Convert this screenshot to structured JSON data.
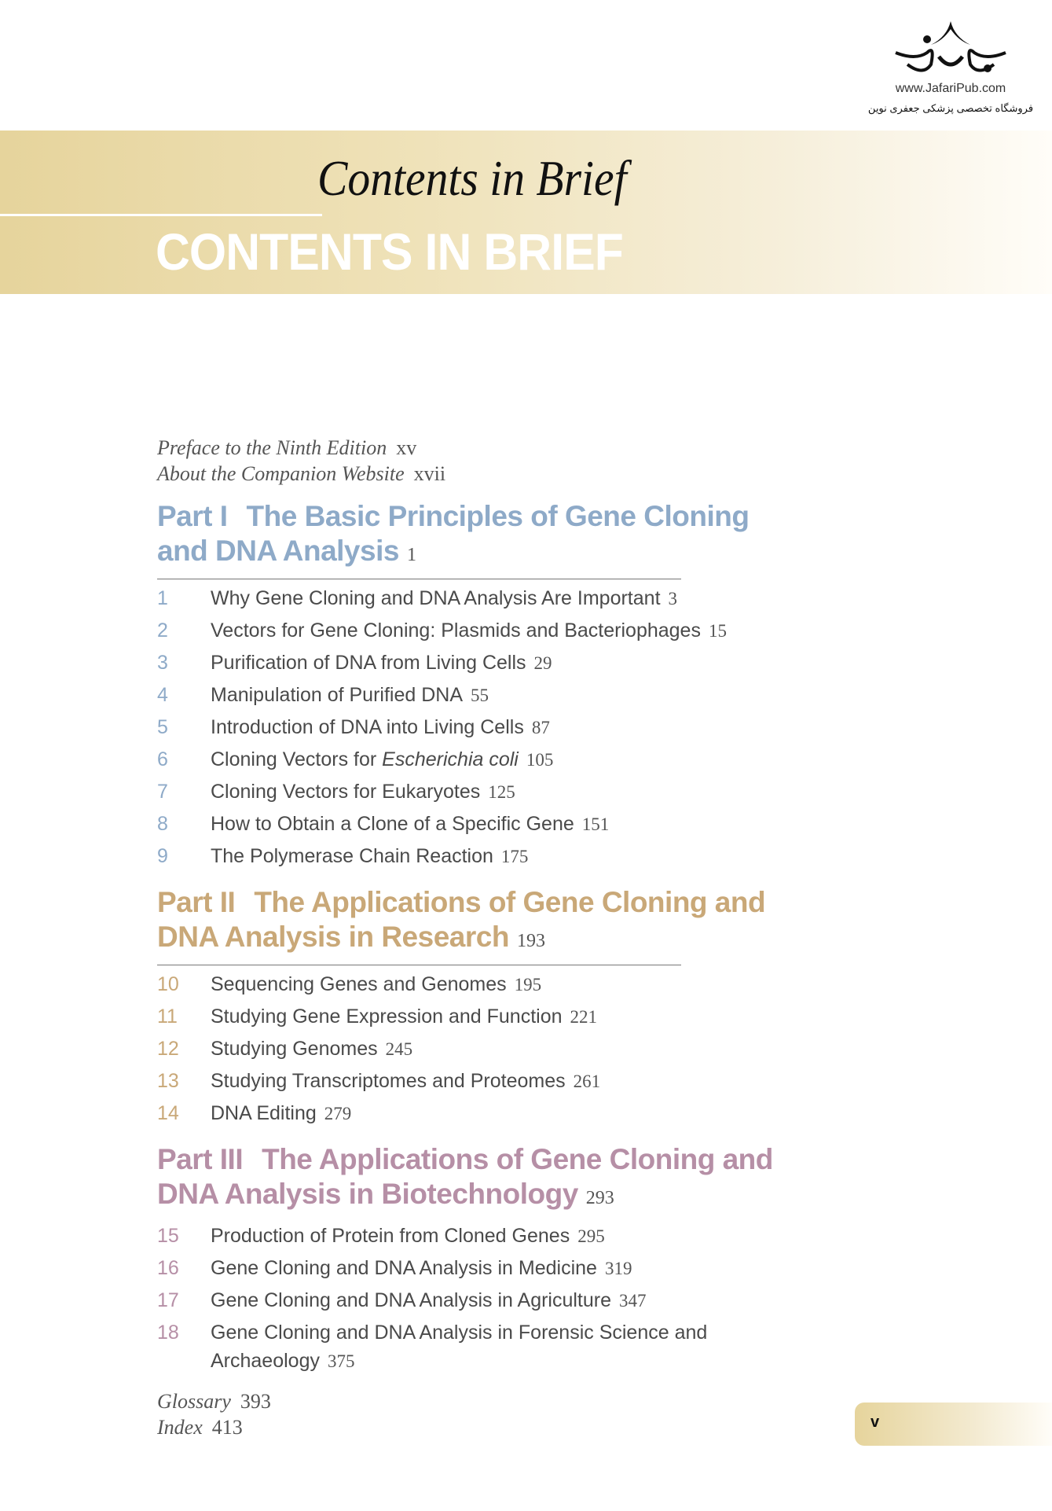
{
  "logo": {
    "url": "www.JafariPub.com",
    "tagline": "فروشگاه تخصصی پزشکی جعفری نوین"
  },
  "header": {
    "title": "Contents in Brief",
    "ghost_title": "CONTENTS IN BRIEF"
  },
  "front_matter": [
    {
      "title": "Preface to the Ninth Edition",
      "page": "xv"
    },
    {
      "title": "About the Companion Website",
      "page": "xvii"
    }
  ],
  "colors": {
    "part1": "#8eaac8",
    "part2": "#c9a878",
    "part3": "#b68fa6",
    "banner": "#e6d49c"
  },
  "parts": [
    {
      "label": "Part I",
      "title": "The Basic Principles of Gene Cloning and DNA Analysis",
      "page": "1",
      "chapters": [
        {
          "num": "1",
          "title": "Why Gene Cloning and DNA Analysis Are Important",
          "page": "3"
        },
        {
          "num": "2",
          "title": "Vectors for Gene Cloning: Plasmids and Bacteriophages",
          "page": "15"
        },
        {
          "num": "3",
          "title": "Purification of DNA from Living Cells",
          "page": "29"
        },
        {
          "num": "4",
          "title": "Manipulation of Purified DNA",
          "page": "55"
        },
        {
          "num": "5",
          "title": "Introduction of DNA into Living Cells",
          "page": "87"
        },
        {
          "num": "6",
          "title": "Cloning Vectors for ",
          "title_italic": "Escherichia coli",
          "page": "105"
        },
        {
          "num": "7",
          "title": "Cloning Vectors for Eukaryotes",
          "page": "125"
        },
        {
          "num": "8",
          "title": "How to Obtain a Clone of a Specific Gene",
          "page": "151"
        },
        {
          "num": "9",
          "title": "The Polymerase Chain Reaction",
          "page": "175"
        }
      ]
    },
    {
      "label": "Part II",
      "title": "The Applications of Gene Cloning and DNA Analysis in Research",
      "page": "193",
      "chapters": [
        {
          "num": "10",
          "title": "Sequencing Genes and Genomes",
          "page": "195"
        },
        {
          "num": "11",
          "title": "Studying Gene Expression and Function",
          "page": "221"
        },
        {
          "num": "12",
          "title": "Studying Genomes",
          "page": "245"
        },
        {
          "num": "13",
          "title": "Studying Transcriptomes and Proteomes",
          "page": "261"
        },
        {
          "num": "14",
          "title": "DNA Editing",
          "page": "279"
        }
      ]
    },
    {
      "label": "Part III",
      "title": "The Applications of Gene Cloning and DNA Analysis in Biotechnology",
      "page": "293",
      "chapters": [
        {
          "num": "15",
          "title": "Production of Protein from Cloned Genes",
          "page": "295"
        },
        {
          "num": "16",
          "title": "Gene Cloning and DNA Analysis in Medicine",
          "page": "319"
        },
        {
          "num": "17",
          "title": "Gene Cloning and DNA Analysis in Agriculture",
          "page": "347"
        },
        {
          "num": "18",
          "title": "Gene Cloning and DNA Analysis in Forensic Science and",
          "title_cont": "Archaeology",
          "page": "375"
        }
      ]
    }
  ],
  "back_matter": [
    {
      "title": "Glossary",
      "page": "393"
    },
    {
      "title": "Index",
      "page": "413"
    }
  ],
  "page_number": "v"
}
